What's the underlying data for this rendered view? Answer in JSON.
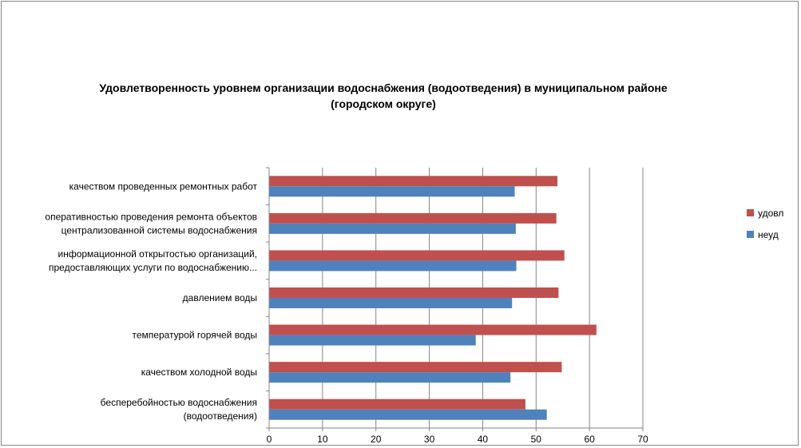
{
  "chart_data": {
    "type": "bar",
    "orientation": "horizontal",
    "title": [
      "Удовлетворенность уровнем организации водоснабжения (водоотведения) в муниципальном районе",
      "(городском округе)"
    ],
    "categories": [
      [
        "качеством проведенных ремонтных работ"
      ],
      [
        "оперативностью проведения ремонта объектов",
        "централизованной системы водоснабжения"
      ],
      [
        "информационной открытостью организаций,",
        "предоставляющих услуги по водоснабжению..."
      ],
      [
        "давлением воды"
      ],
      [
        "температурой горячей воды"
      ],
      [
        "качеством холодной воды"
      ],
      [
        "бесперебойностью водоснабжения",
        "(водоотведения)"
      ]
    ],
    "series": [
      {
        "name": "удовл",
        "color": "#C0504D",
        "values": [
          54,
          53.8,
          55.3,
          54.2,
          61.3,
          54.8,
          48
        ]
      },
      {
        "name": "неуд",
        "color": "#4F81BD",
        "values": [
          46,
          46.2,
          46.3,
          45.5,
          38.7,
          45.2,
          52
        ]
      }
    ],
    "xlim": [
      0,
      70
    ],
    "xticks": [
      0,
      10,
      20,
      30,
      40,
      50,
      60,
      70
    ],
    "grid": true,
    "legend": "right"
  }
}
